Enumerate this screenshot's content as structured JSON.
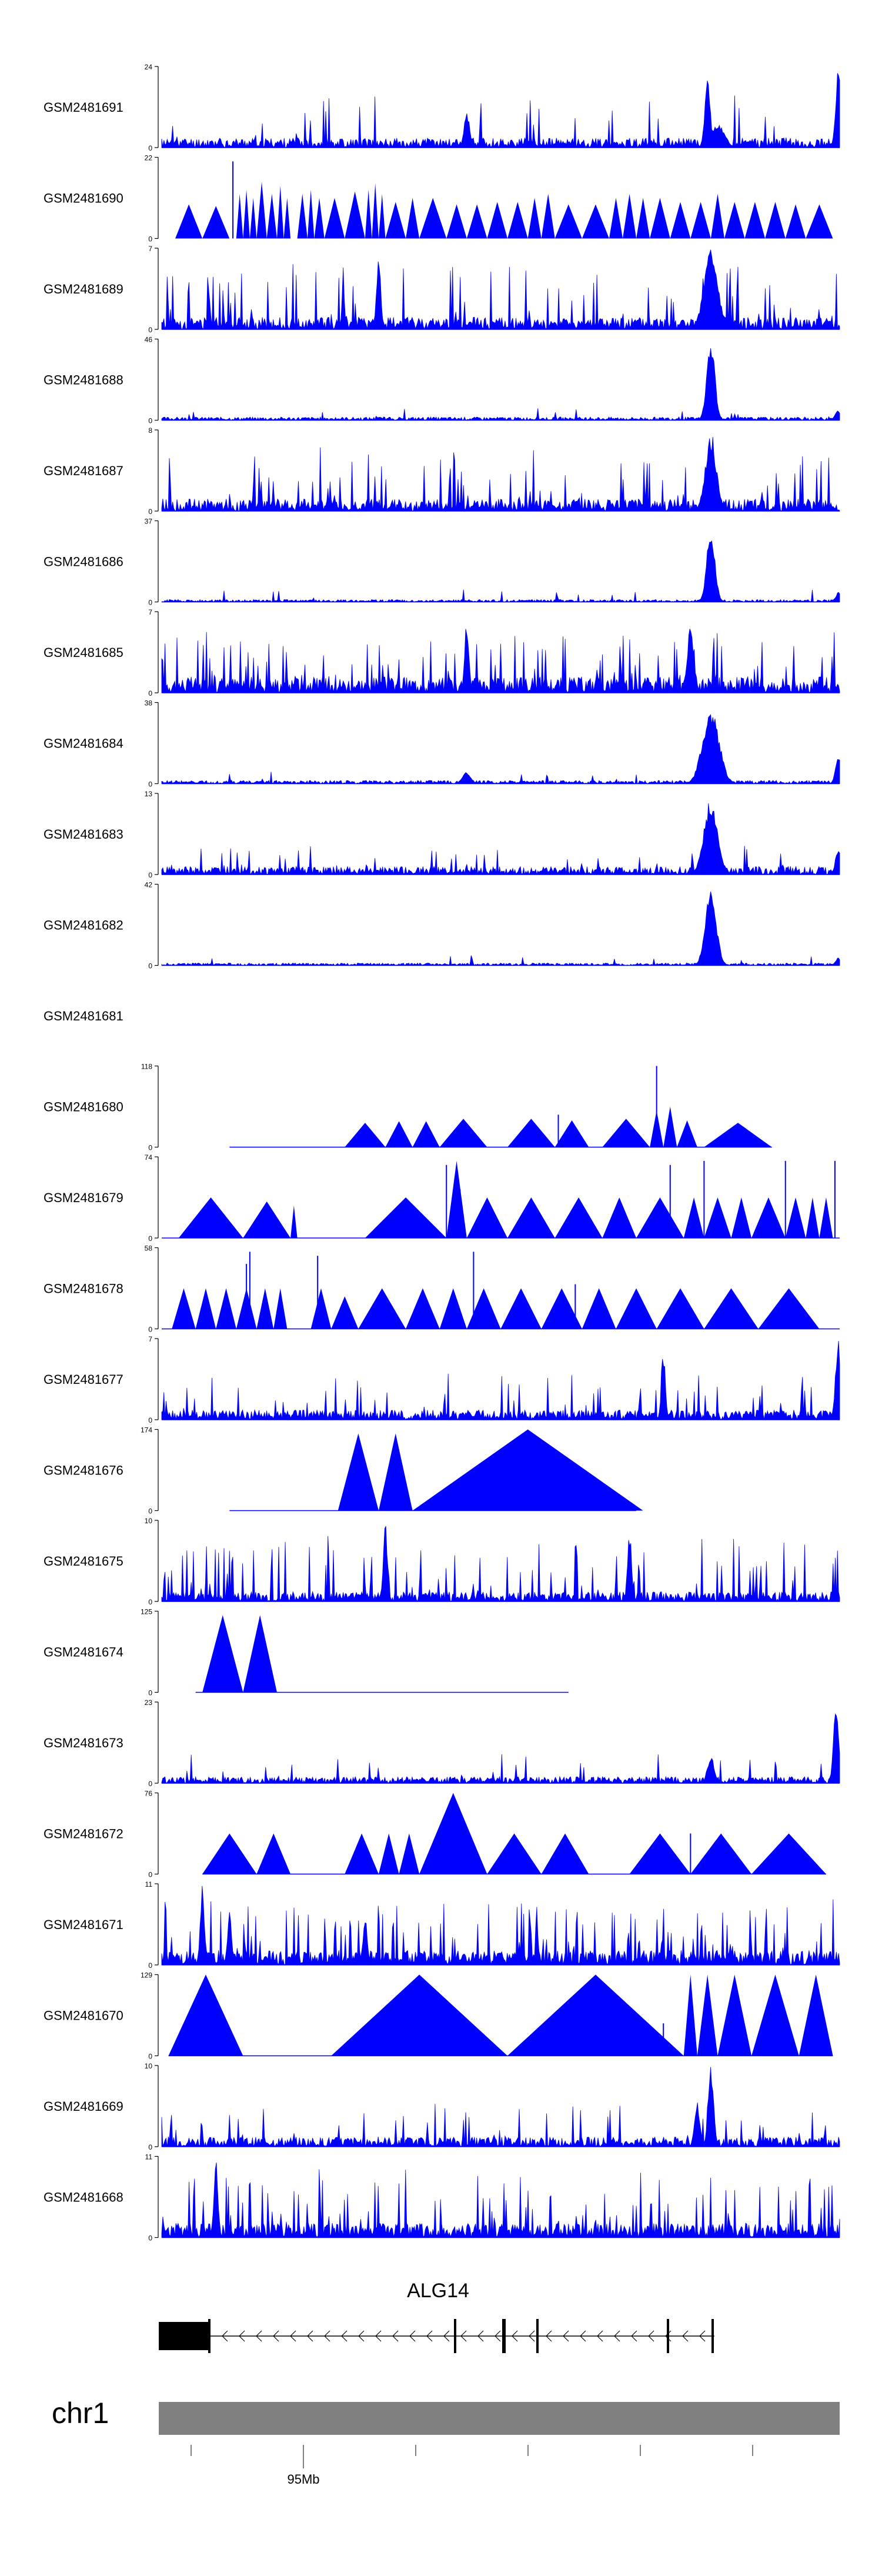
{
  "chart_data": {
    "type": "area",
    "title": "",
    "genome": {
      "chromosome_label": "chr1",
      "gene_label": "ALG14",
      "position_label": "95Mb"
    },
    "colors": {
      "signal": "#0000ff",
      "axis": "#000000",
      "gene_body": "#000000",
      "chromosome_bar": "#808080",
      "label": "#000000"
    },
    "tracks": [
      {
        "name": "GSM2481691",
        "ymax": 24,
        "style": "spiky",
        "seed": 11,
        "base": 0.12,
        "spikeProb": 0.05,
        "spikeAmp": 0.55,
        "start": 0.0,
        "end": 1.0,
        "peaks": [
          [
            0.45,
            0.45,
            0.004
          ],
          [
            0.805,
            0.85,
            0.004
          ],
          [
            0.82,
            0.3,
            0.01
          ],
          [
            0.998,
            1.0,
            0.004
          ]
        ]
      },
      {
        "name": "GSM2481690",
        "ymax": 22,
        "style": "triangles",
        "seed": 12,
        "tris": [
          [
            0.02,
            0.06,
            0.42
          ],
          [
            0.06,
            0.1,
            0.4
          ],
          [
            0.11,
            0.12,
            0.55
          ],
          [
            0.12,
            0.13,
            0.6
          ],
          [
            0.13,
            0.14,
            0.5
          ],
          [
            0.14,
            0.155,
            0.7
          ],
          [
            0.155,
            0.17,
            0.55
          ],
          [
            0.17,
            0.18,
            0.65
          ],
          [
            0.18,
            0.19,
            0.5
          ],
          [
            0.2,
            0.215,
            0.55
          ],
          [
            0.215,
            0.225,
            0.6
          ],
          [
            0.225,
            0.24,
            0.5
          ],
          [
            0.24,
            0.27,
            0.5
          ],
          [
            0.27,
            0.3,
            0.58
          ],
          [
            0.3,
            0.31,
            0.6
          ],
          [
            0.31,
            0.32,
            0.68
          ],
          [
            0.32,
            0.33,
            0.55
          ],
          [
            0.33,
            0.36,
            0.45
          ],
          [
            0.36,
            0.38,
            0.5
          ],
          [
            0.38,
            0.42,
            0.5
          ],
          [
            0.42,
            0.45,
            0.42
          ],
          [
            0.45,
            0.48,
            0.42
          ],
          [
            0.48,
            0.51,
            0.45
          ],
          [
            0.51,
            0.54,
            0.45
          ],
          [
            0.54,
            0.56,
            0.5
          ],
          [
            0.56,
            0.58,
            0.55
          ],
          [
            0.58,
            0.62,
            0.42
          ],
          [
            0.62,
            0.66,
            0.42
          ],
          [
            0.66,
            0.68,
            0.5
          ],
          [
            0.68,
            0.7,
            0.55
          ],
          [
            0.7,
            0.72,
            0.5
          ],
          [
            0.72,
            0.75,
            0.5
          ],
          [
            0.75,
            0.78,
            0.45
          ],
          [
            0.78,
            0.81,
            0.45
          ],
          [
            0.81,
            0.83,
            0.55
          ],
          [
            0.83,
            0.86,
            0.45
          ],
          [
            0.86,
            0.89,
            0.45
          ],
          [
            0.89,
            0.92,
            0.45
          ],
          [
            0.92,
            0.95,
            0.42
          ],
          [
            0.95,
            0.99,
            0.42
          ]
        ],
        "peaks": [
          [
            0.105,
            0.95,
            0.012
          ]
        ]
      },
      {
        "name": "GSM2481689",
        "ymax": 7,
        "style": "spiky",
        "seed": 13,
        "base": 0.15,
        "spikeProb": 0.12,
        "spikeAmp": 0.7,
        "start": 0.0,
        "end": 1.0,
        "peaks": [
          [
            0.81,
            1.0,
            0.01
          ],
          [
            0.32,
            0.95,
            0.003
          ]
        ]
      },
      {
        "name": "GSM2481688",
        "ymax": 46,
        "style": "spiky",
        "seed": 14,
        "base": 0.04,
        "spikeProb": 0.02,
        "spikeAmp": 0.15,
        "start": 0.0,
        "end": 1.0,
        "peaks": [
          [
            0.81,
            0.98,
            0.006
          ],
          [
            0.997,
            0.12,
            0.004
          ]
        ]
      },
      {
        "name": "GSM2481687",
        "ymax": 8,
        "style": "spiky",
        "seed": 15,
        "base": 0.15,
        "spikeProb": 0.1,
        "spikeAmp": 0.65,
        "start": 0.0,
        "end": 1.0,
        "peaks": [
          [
            0.81,
            0.98,
            0.008
          ]
        ]
      },
      {
        "name": "GSM2481686",
        "ymax": 37,
        "style": "spiky",
        "seed": 16,
        "base": 0.03,
        "spikeProb": 0.02,
        "spikeAmp": 0.15,
        "start": 0.0,
        "end": 1.0,
        "peaks": [
          [
            0.81,
            0.95,
            0.006
          ],
          [
            0.998,
            0.12,
            0.004
          ]
        ]
      },
      {
        "name": "GSM2481685",
        "ymax": 7,
        "style": "spiky",
        "seed": 17,
        "base": 0.2,
        "spikeProb": 0.15,
        "spikeAmp": 0.6,
        "start": 0.0,
        "end": 1.0,
        "peaks": [
          [
            0.45,
            0.95,
            0.003
          ],
          [
            0.78,
            0.85,
            0.005
          ]
        ]
      },
      {
        "name": "GSM2481684",
        "ymax": 38,
        "style": "spiky",
        "seed": 18,
        "base": 0.04,
        "spikeProb": 0.02,
        "spikeAmp": 0.12,
        "start": 0.0,
        "end": 1.0,
        "peaks": [
          [
            0.81,
            0.95,
            0.012
          ],
          [
            0.45,
            0.15,
            0.006
          ],
          [
            0.998,
            0.35,
            0.004
          ]
        ]
      },
      {
        "name": "GSM2481683",
        "ymax": 13,
        "style": "spiky",
        "seed": 19,
        "base": 0.1,
        "spikeProb": 0.06,
        "spikeAmp": 0.3,
        "start": 0.0,
        "end": 1.0,
        "peaks": [
          [
            0.81,
            0.95,
            0.01
          ],
          [
            0.998,
            0.35,
            0.004
          ]
        ]
      },
      {
        "name": "GSM2481682",
        "ymax": 42,
        "style": "spiky",
        "seed": 20,
        "base": 0.03,
        "spikeProb": 0.02,
        "spikeAmp": 0.1,
        "start": 0.0,
        "end": 1.0,
        "peaks": [
          [
            0.81,
            0.95,
            0.008
          ],
          [
            0.998,
            0.1,
            0.004
          ]
        ]
      },
      {
        "name": "GSM2481681",
        "ymax": null,
        "style": "empty"
      },
      {
        "name": "GSM2481680",
        "ymax": 118,
        "style": "triangles",
        "seed": 21,
        "baseline": [
          0.1,
          0.9
        ],
        "tris": [
          [
            0.27,
            0.33,
            0.3
          ],
          [
            0.33,
            0.37,
            0.32
          ],
          [
            0.37,
            0.41,
            0.32
          ],
          [
            0.41,
            0.48,
            0.35
          ],
          [
            0.51,
            0.58,
            0.35
          ],
          [
            0.58,
            0.63,
            0.33
          ],
          [
            0.65,
            0.72,
            0.35
          ],
          [
            0.72,
            0.74,
            0.45
          ],
          [
            0.74,
            0.76,
            0.5
          ],
          [
            0.76,
            0.79,
            0.33
          ],
          [
            0.8,
            0.9,
            0.3
          ]
        ],
        "peaks": [
          [
            0.73,
            1.0,
            0.004
          ],
          [
            0.585,
            0.4,
            0.003
          ]
        ]
      },
      {
        "name": "GSM2481679",
        "ymax": 74,
        "style": "triangles",
        "seed": 22,
        "baseline": [
          0.0,
          1.0
        ],
        "tris": [
          [
            0.025,
            0.12,
            0.5
          ],
          [
            0.12,
            0.19,
            0.45
          ],
          [
            0.19,
            0.2,
            0.4
          ],
          [
            0.3,
            0.42,
            0.5
          ],
          [
            0.42,
            0.45,
            0.95
          ],
          [
            0.45,
            0.51,
            0.5
          ],
          [
            0.51,
            0.58,
            0.5
          ],
          [
            0.58,
            0.65,
            0.5
          ],
          [
            0.65,
            0.7,
            0.5
          ],
          [
            0.7,
            0.77,
            0.5
          ],
          [
            0.77,
            0.8,
            0.5
          ],
          [
            0.8,
            0.84,
            0.5
          ],
          [
            0.84,
            0.87,
            0.5
          ],
          [
            0.87,
            0.92,
            0.5
          ],
          [
            0.92,
            0.95,
            0.5
          ],
          [
            0.95,
            0.97,
            0.5
          ],
          [
            0.97,
            0.99,
            0.5
          ]
        ],
        "peaks": [
          [
            0.42,
            0.9,
            0.003
          ],
          [
            0.44,
            0.6,
            0.003
          ],
          [
            0.75,
            0.9,
            0.003
          ],
          [
            0.8,
            0.95,
            0.003
          ],
          [
            0.92,
            0.95,
            0.003
          ],
          [
            0.993,
            0.95,
            0.003
          ]
        ]
      },
      {
        "name": "GSM2481678",
        "ymax": 58,
        "style": "triangles",
        "seed": 23,
        "baseline": [
          0.0,
          1.0
        ],
        "tris": [
          [
            0.015,
            0.05,
            0.5
          ],
          [
            0.05,
            0.08,
            0.5
          ],
          [
            0.08,
            0.11,
            0.5
          ],
          [
            0.11,
            0.14,
            0.5
          ],
          [
            0.14,
            0.165,
            0.5
          ],
          [
            0.165,
            0.185,
            0.5
          ],
          [
            0.22,
            0.25,
            0.5
          ],
          [
            0.25,
            0.29,
            0.4
          ],
          [
            0.29,
            0.36,
            0.5
          ],
          [
            0.36,
            0.41,
            0.5
          ],
          [
            0.41,
            0.45,
            0.5
          ],
          [
            0.45,
            0.5,
            0.5
          ],
          [
            0.5,
            0.56,
            0.5
          ],
          [
            0.56,
            0.62,
            0.5
          ],
          [
            0.62,
            0.67,
            0.5
          ],
          [
            0.67,
            0.73,
            0.5
          ],
          [
            0.73,
            0.8,
            0.5
          ],
          [
            0.8,
            0.88,
            0.5
          ],
          [
            0.88,
            0.97,
            0.5
          ]
        ],
        "peaks": [
          [
            0.125,
            0.8,
            0.003
          ],
          [
            0.13,
            0.95,
            0.003
          ],
          [
            0.23,
            0.9,
            0.003
          ],
          [
            0.46,
            0.95,
            0.003
          ],
          [
            0.61,
            0.55,
            0.003
          ]
        ]
      },
      {
        "name": "GSM2481677",
        "ymax": 7,
        "style": "spiky",
        "seed": 24,
        "base": 0.12,
        "spikeProb": 0.08,
        "spikeAmp": 0.5,
        "start": 0.0,
        "end": 1.0,
        "peaks": [
          [
            0.74,
            0.85,
            0.003
          ],
          [
            0.998,
            1.0,
            0.004
          ]
        ]
      },
      {
        "name": "GSM2481676",
        "ymax": 174,
        "style": "triangles",
        "seed": 25,
        "baseline": [
          0.1,
          0.7
        ],
        "tris": [
          [
            0.26,
            0.32,
            0.95
          ],
          [
            0.32,
            0.37,
            0.95
          ],
          [
            0.37,
            0.71,
            1.0
          ]
        ],
        "peaks": []
      },
      {
        "name": "GSM2481675",
        "ymax": 10,
        "style": "spiky",
        "seed": 26,
        "base": 0.12,
        "spikeProb": 0.14,
        "spikeAmp": 0.7,
        "start": 0.0,
        "end": 1.0,
        "peaks": [
          [
            0.33,
            1.0,
            0.003
          ],
          [
            0.69,
            0.9,
            0.003
          ]
        ]
      },
      {
        "name": "GSM2481674",
        "ymax": 125,
        "style": "triangles",
        "seed": 27,
        "baseline": [
          0.05,
          0.6
        ],
        "tris": [
          [
            0.06,
            0.12,
            0.95
          ],
          [
            0.12,
            0.17,
            0.95
          ]
        ],
        "peaks": []
      },
      {
        "name": "GSM2481673",
        "ymax": 23,
        "style": "spiky",
        "seed": 28,
        "base": 0.08,
        "spikeProb": 0.05,
        "spikeAmp": 0.3,
        "start": 0.0,
        "end": 1.0,
        "peaks": [
          [
            0.995,
            1.0,
            0.004
          ],
          [
            0.81,
            0.35,
            0.005
          ]
        ]
      },
      {
        "name": "GSM2481672",
        "ymax": 76,
        "style": "triangles",
        "seed": 29,
        "baseline": [
          0.06,
          0.98
        ],
        "tris": [
          [
            0.06,
            0.14,
            0.5
          ],
          [
            0.14,
            0.19,
            0.5
          ],
          [
            0.27,
            0.32,
            0.5
          ],
          [
            0.32,
            0.35,
            0.5
          ],
          [
            0.35,
            0.38,
            0.5
          ],
          [
            0.38,
            0.48,
            1.0
          ],
          [
            0.48,
            0.56,
            0.5
          ],
          [
            0.56,
            0.63,
            0.5
          ],
          [
            0.69,
            0.78,
            0.5
          ],
          [
            0.78,
            0.87,
            0.5
          ],
          [
            0.87,
            0.98,
            0.5
          ]
        ],
        "peaks": [
          [
            0.78,
            0.5,
            0.003
          ]
        ]
      },
      {
        "name": "GSM2481671",
        "ymax": 11,
        "style": "spiky",
        "seed": 30,
        "base": 0.18,
        "spikeProb": 0.16,
        "spikeAmp": 0.65,
        "start": 0.0,
        "end": 1.0,
        "peaks": [
          [
            0.06,
            1.0,
            0.003
          ],
          [
            0.1,
            0.7,
            0.003
          ],
          [
            0.3,
            0.65,
            0.003
          ]
        ]
      },
      {
        "name": "GSM2481670",
        "ymax": 129,
        "style": "triangles",
        "seed": 31,
        "baseline": [
          0.01,
          0.99
        ],
        "tris": [
          [
            0.01,
            0.12,
            1.0
          ],
          [
            0.25,
            0.51,
            1.0
          ],
          [
            0.51,
            0.77,
            1.0
          ],
          [
            0.77,
            0.79,
            1.0
          ],
          [
            0.79,
            0.82,
            1.0
          ],
          [
            0.82,
            0.87,
            1.0
          ],
          [
            0.87,
            0.94,
            1.0
          ],
          [
            0.94,
            0.99,
            1.0
          ]
        ],
        "peaks": [
          [
            0.74,
            0.4,
            0.003
          ]
        ]
      },
      {
        "name": "GSM2481669",
        "ymax": 10,
        "style": "spiky",
        "seed": 32,
        "base": 0.12,
        "spikeProb": 0.08,
        "spikeAmp": 0.5,
        "start": 0.0,
        "end": 1.0,
        "peaks": [
          [
            0.81,
            1.0,
            0.004
          ],
          [
            0.79,
            0.55,
            0.004
          ]
        ]
      },
      {
        "name": "GSM2481668",
        "ymax": 11,
        "style": "spiky",
        "seed": 33,
        "base": 0.18,
        "spikeProb": 0.14,
        "spikeAmp": 0.7,
        "start": 0.0,
        "end": 1.0,
        "peaks": [
          [
            0.08,
            1.0,
            0.003
          ]
        ]
      }
    ]
  }
}
